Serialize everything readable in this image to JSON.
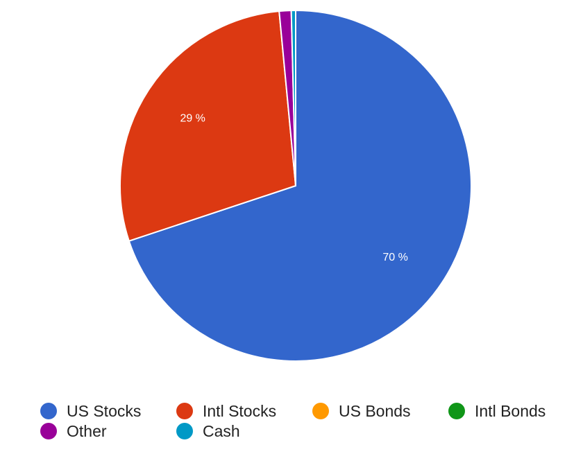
{
  "chart_data": {
    "type": "pie",
    "slices": [
      {
        "name": "US Stocks",
        "value": 69.9,
        "label": "70 %",
        "color": "#3366cc"
      },
      {
        "name": "Intl Stocks",
        "value": 28.6,
        "label": "29 %",
        "color": "#dc3912"
      },
      {
        "name": "US Bonds",
        "value": 0,
        "label": "",
        "color": "#ff9900"
      },
      {
        "name": "Intl Bonds",
        "value": 0,
        "label": "",
        "color": "#109618"
      },
      {
        "name": "Other",
        "value": 1.1,
        "label": "",
        "color": "#990099"
      },
      {
        "name": "Cash",
        "value": 0.4,
        "label": "",
        "color": "#0099c6"
      }
    ],
    "legend_position": "bottom"
  }
}
